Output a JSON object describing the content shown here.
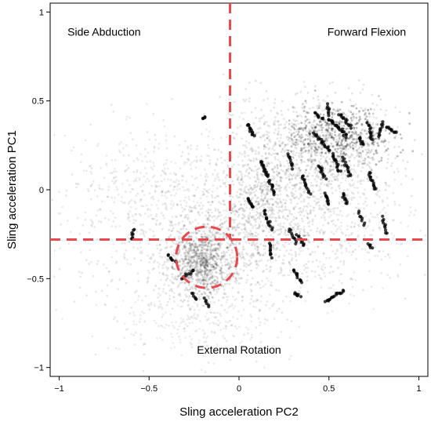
{
  "chart_data": {
    "type": "scatter",
    "xlabel": "Sling acceleration PC2",
    "ylabel": "Sling acceleration PC1",
    "xlim": [
      -1.05,
      1.05
    ],
    "ylim": [
      -1.05,
      1.05
    ],
    "xticks": [
      {
        "v": -1,
        "label": "−1"
      },
      {
        "v": -0.5,
        "label": "−0.5"
      },
      {
        "v": 0,
        "label": "0"
      },
      {
        "v": 0.5,
        "label": "0.5"
      },
      {
        "v": 1,
        "label": "1"
      }
    ],
    "yticks": [
      {
        "v": -1,
        "label": "−1"
      },
      {
        "v": -0.5,
        "label": "−0.5"
      },
      {
        "v": 0,
        "label": "0"
      },
      {
        "v": 0.5,
        "label": "0.5"
      },
      {
        "v": 1,
        "label": "1"
      }
    ],
    "grid": false,
    "legend": "none",
    "point_color": "#000000",
    "threshold_color": "#e8484e",
    "thresholds": {
      "vertical_x": -0.05,
      "vertical_y_from": -0.28,
      "vertical_y_to": 1.05,
      "horizontal_y": -0.28
    },
    "circle": {
      "cx": -0.18,
      "cy": -0.38,
      "r": 0.17
    },
    "regions": [
      {
        "label": "Side Abduction",
        "x": -0.75,
        "y": 0.89
      },
      {
        "label": "Forward Flexion",
        "x": 0.71,
        "y": 0.89
      },
      {
        "label": "External Rotation",
        "x": 0.0,
        "y": -0.9
      }
    ],
    "clusters": [
      {
        "cx": -0.2,
        "cy": -0.4,
        "sx": 0.09,
        "sy": 0.1,
        "n": 900,
        "alpha": 0.12
      },
      {
        "cx": -0.25,
        "cy": -0.35,
        "sx": 0.28,
        "sy": 0.25,
        "n": 600,
        "alpha": 0.09
      },
      {
        "cx": -0.45,
        "cy": 0.0,
        "sx": 0.3,
        "sy": 0.2,
        "n": 500,
        "alpha": 0.08
      },
      {
        "cx": 0.1,
        "cy": -0.1,
        "sx": 0.12,
        "sy": 0.18,
        "n": 500,
        "alpha": 0.1
      },
      {
        "cx": 0.45,
        "cy": 0.25,
        "sx": 0.22,
        "sy": 0.15,
        "n": 900,
        "alpha": 0.1
      },
      {
        "cx": 0.55,
        "cy": 0.3,
        "sx": 0.15,
        "sy": 0.08,
        "n": 400,
        "alpha": 0.25
      },
      {
        "cx": 0.3,
        "cy": -0.15,
        "sx": 0.2,
        "sy": 0.2,
        "n": 400,
        "alpha": 0.1
      },
      {
        "cx": 0.6,
        "cy": -0.2,
        "sx": 0.2,
        "sy": 0.2,
        "n": 300,
        "alpha": 0.08
      },
      {
        "cx": -0.25,
        "cy": -0.75,
        "sx": 0.25,
        "sy": 0.1,
        "n": 200,
        "alpha": 0.07
      }
    ],
    "tracks": [
      {
        "x1": 0.05,
        "y1": 0.37,
        "x2": 0.08,
        "y2": 0.3,
        "n": 14
      },
      {
        "x1": 0.12,
        "y1": 0.16,
        "x2": 0.16,
        "y2": 0.07,
        "n": 16
      },
      {
        "x1": 0.17,
        "y1": 0.05,
        "x2": 0.2,
        "y2": -0.02,
        "n": 12
      },
      {
        "x1": 0.05,
        "y1": -0.05,
        "x2": 0.08,
        "y2": -0.1,
        "n": 10
      },
      {
        "x1": 0.14,
        "y1": -0.12,
        "x2": 0.18,
        "y2": -0.22,
        "n": 14
      },
      {
        "x1": 0.17,
        "y1": -0.3,
        "x2": 0.18,
        "y2": -0.38,
        "n": 10
      },
      {
        "x1": 0.28,
        "y1": -0.22,
        "x2": 0.32,
        "y2": -0.3,
        "n": 10
      },
      {
        "x1": 0.33,
        "y1": -0.25,
        "x2": 0.36,
        "y2": -0.32,
        "n": 10
      },
      {
        "x1": 0.3,
        "y1": -0.45,
        "x2": 0.35,
        "y2": -0.52,
        "n": 12
      },
      {
        "x1": 0.31,
        "y1": -0.58,
        "x2": 0.34,
        "y2": -0.6,
        "n": 8
      },
      {
        "x1": 0.35,
        "y1": 0.08,
        "x2": 0.39,
        "y2": -0.02,
        "n": 14
      },
      {
        "x1": 0.27,
        "y1": 0.2,
        "x2": 0.3,
        "y2": 0.12,
        "n": 10
      },
      {
        "x1": 0.42,
        "y1": 0.43,
        "x2": 0.46,
        "y2": 0.4,
        "n": 8
      },
      {
        "x1": 0.49,
        "y1": 0.48,
        "x2": 0.5,
        "y2": 0.42,
        "n": 8
      },
      {
        "x1": 0.5,
        "y1": 0.4,
        "x2": 0.6,
        "y2": 0.3,
        "n": 22
      },
      {
        "x1": 0.56,
        "y1": 0.43,
        "x2": 0.62,
        "y2": 0.35,
        "n": 14
      },
      {
        "x1": 0.42,
        "y1": 0.32,
        "x2": 0.5,
        "y2": 0.22,
        "n": 18
      },
      {
        "x1": 0.52,
        "y1": 0.2,
        "x2": 0.56,
        "y2": 0.1,
        "n": 14
      },
      {
        "x1": 0.58,
        "y1": 0.18,
        "x2": 0.62,
        "y2": 0.07,
        "n": 14
      },
      {
        "x1": 0.44,
        "y1": 0.14,
        "x2": 0.48,
        "y2": 0.06,
        "n": 12
      },
      {
        "x1": 0.48,
        "y1": -0.02,
        "x2": 0.5,
        "y2": -0.08,
        "n": 10
      },
      {
        "x1": 0.58,
        "y1": -0.02,
        "x2": 0.6,
        "y2": -0.08,
        "n": 10
      },
      {
        "x1": 0.67,
        "y1": 0.3,
        "x2": 0.69,
        "y2": 0.25,
        "n": 8
      },
      {
        "x1": 0.72,
        "y1": 0.38,
        "x2": 0.74,
        "y2": 0.28,
        "n": 12
      },
      {
        "x1": 0.8,
        "y1": 0.38,
        "x2": 0.78,
        "y2": 0.3,
        "n": 10
      },
      {
        "x1": 0.82,
        "y1": 0.35,
        "x2": 0.87,
        "y2": 0.32,
        "n": 10
      },
      {
        "x1": 0.72,
        "y1": 0.1,
        "x2": 0.76,
        "y2": 0.0,
        "n": 14
      },
      {
        "x1": 0.8,
        "y1": -0.15,
        "x2": 0.82,
        "y2": -0.25,
        "n": 10
      },
      {
        "x1": 0.72,
        "y1": -0.3,
        "x2": 0.74,
        "y2": -0.33,
        "n": 6
      },
      {
        "x1": 0.48,
        "y1": -0.63,
        "x2": 0.58,
        "y2": -0.57,
        "n": 18
      },
      {
        "x1": 0.67,
        "y1": -0.12,
        "x2": 0.69,
        "y2": -0.2,
        "n": 8
      },
      {
        "x1": -0.25,
        "y1": -0.45,
        "x2": -0.32,
        "y2": -0.5,
        "n": 10
      },
      {
        "x1": -0.58,
        "y1": -0.22,
        "x2": -0.6,
        "y2": -0.28,
        "n": 8
      },
      {
        "x1": -0.26,
        "y1": -0.58,
        "x2": -0.24,
        "y2": -0.62,
        "n": 6
      },
      {
        "x1": -0.19,
        "y1": -0.61,
        "x2": -0.17,
        "y2": -0.66,
        "n": 6
      },
      {
        "x1": -0.2,
        "y1": 0.4,
        "x2": -0.19,
        "y2": 0.41,
        "n": 4
      },
      {
        "x1": -0.4,
        "y1": -0.37,
        "x2": -0.35,
        "y2": -0.41,
        "n": 8
      }
    ]
  }
}
